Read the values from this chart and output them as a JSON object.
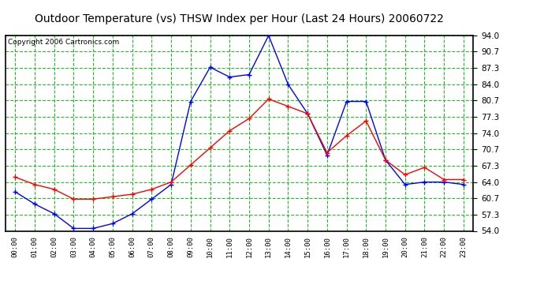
{
  "title": "Outdoor Temperature (vs) THSW Index per Hour (Last 24 Hours) 20060722",
  "copyright": "Copyright 2006 Cartronics.com",
  "hours": [
    "00:00",
    "01:00",
    "02:00",
    "03:00",
    "04:00",
    "05:00",
    "06:00",
    "07:00",
    "08:00",
    "09:00",
    "10:00",
    "11:00",
    "12:00",
    "13:00",
    "14:00",
    "15:00",
    "16:00",
    "17:00",
    "18:00",
    "19:00",
    "20:00",
    "21:00",
    "22:00",
    "23:00"
  ],
  "temp": [
    65.0,
    63.5,
    62.5,
    60.5,
    60.5,
    61.0,
    61.5,
    62.5,
    64.0,
    67.5,
    71.0,
    74.5,
    77.0,
    81.0,
    79.5,
    78.0,
    70.0,
    73.5,
    76.5,
    68.5,
    65.5,
    67.0,
    64.5,
    64.5
  ],
  "thsw": [
    62.0,
    59.5,
    57.5,
    54.5,
    54.5,
    55.5,
    57.5,
    60.5,
    63.5,
    80.5,
    87.5,
    85.5,
    86.0,
    94.0,
    84.0,
    78.0,
    69.5,
    80.5,
    80.5,
    68.5,
    63.5,
    64.0,
    64.0,
    63.5
  ],
  "ylim_min": 54.0,
  "ylim_max": 94.0,
  "yticks": [
    54.0,
    57.3,
    60.7,
    64.0,
    67.3,
    70.7,
    74.0,
    77.3,
    80.7,
    84.0,
    87.3,
    90.7,
    94.0
  ],
  "temp_color": "#ff0000",
  "thsw_color": "#0000ff",
  "grid_color": "#00cc00",
  "bg_color": "#ffffff",
  "plot_bg_color": "#ffffff",
  "title_fontsize": 10,
  "copyright_fontsize": 6.5
}
